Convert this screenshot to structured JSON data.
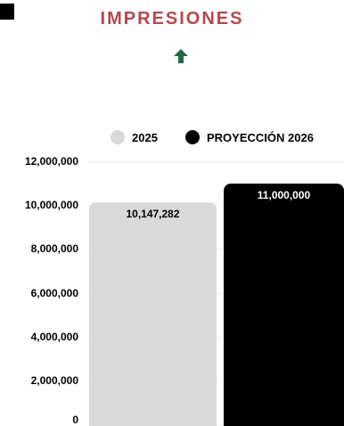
{
  "title": "IMPRESIONES",
  "arrow_icon": "arrow-up-icon",
  "colors": {
    "title": "#b5484c",
    "arrow": "#1f6b43",
    "series_2025": "#d9d9d9",
    "series_2026": "#000000",
    "label_on_light": "#000000",
    "label_on_dark": "#ffffff"
  },
  "chart_data": {
    "type": "bar",
    "categories": [
      "2025",
      "PROYECCIÓN 2026"
    ],
    "values": [
      10147282,
      11000000
    ],
    "value_labels": [
      "10,147,282",
      "11,000,000"
    ],
    "legend": [
      "2025",
      "PROYECCIÓN 2026"
    ],
    "legend_position": "top-right",
    "yticks": [
      "12,000,000",
      "10,000,000",
      "8,000,000",
      "6,000,000",
      "4,000,000",
      "2,000,000",
      "0"
    ],
    "ytick_values": [
      12000000,
      10000000,
      8000000,
      6000000,
      4000000,
      2000000,
      0
    ],
    "ylim": [
      0,
      12000000
    ],
    "grid": true
  }
}
